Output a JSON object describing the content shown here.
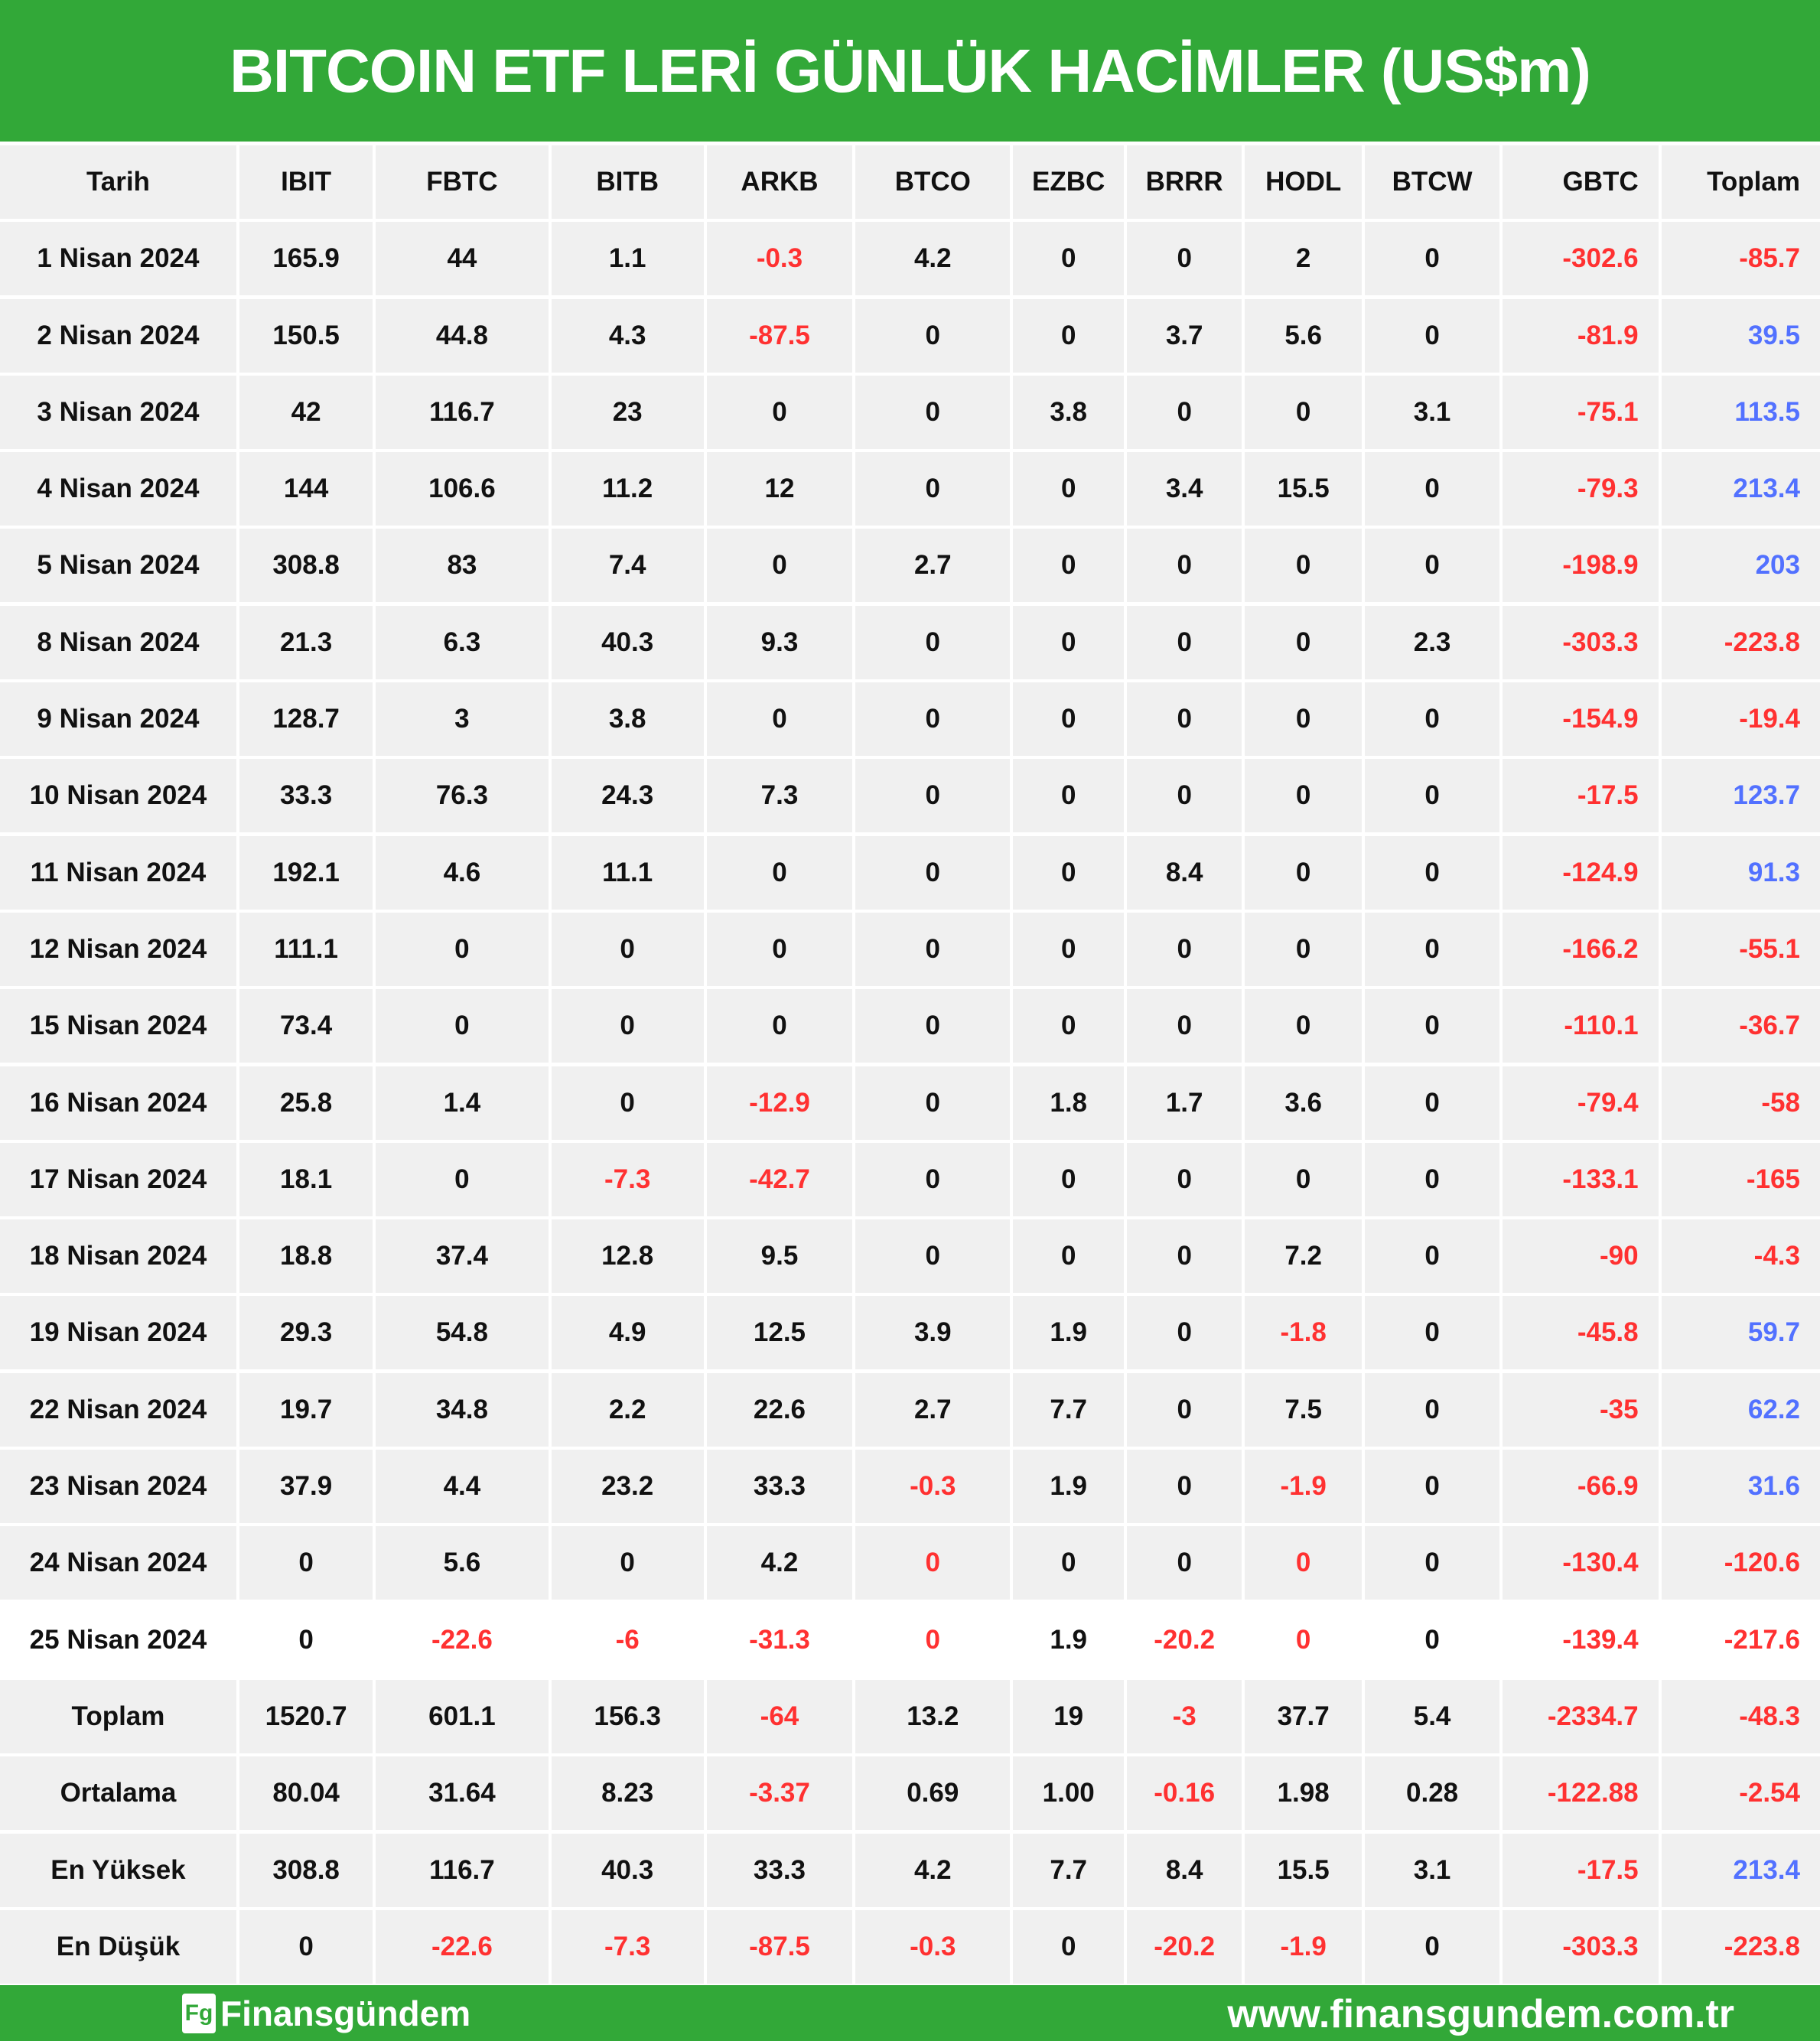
{
  "title": "BITCOIN ETF LERİ GÜNLÜK HACİMLER (US$m)",
  "colors": {
    "brand_green": "#32a838",
    "negative_red": "#ff3131",
    "positive_blue": "#5271ff",
    "row_bg": "#f0f0f0"
  },
  "table": {
    "columns": [
      "Tarih",
      "IBIT",
      "FBTC",
      "BITB",
      "ARKB",
      "BTCO",
      "EZBC",
      "BRRR",
      "HODL",
      "BTCW",
      "GBTC",
      "Toplam"
    ],
    "rows": [
      [
        [
          "1 Nisan 2024",
          ""
        ],
        [
          "165.9",
          ""
        ],
        [
          "44",
          ""
        ],
        [
          "1.1",
          ""
        ],
        [
          "-0.3",
          "r"
        ],
        [
          "4.2",
          ""
        ],
        [
          "0",
          ""
        ],
        [
          "0",
          ""
        ],
        [
          "2",
          ""
        ],
        [
          "0",
          ""
        ],
        [
          "-302.6",
          "r"
        ],
        [
          "-85.7",
          "r"
        ]
      ],
      [
        [
          "2 Nisan 2024",
          ""
        ],
        [
          "150.5",
          ""
        ],
        [
          "44.8",
          ""
        ],
        [
          "4.3",
          ""
        ],
        [
          "-87.5",
          "r"
        ],
        [
          "0",
          ""
        ],
        [
          "0",
          ""
        ],
        [
          "3.7",
          ""
        ],
        [
          "5.6",
          ""
        ],
        [
          "0",
          ""
        ],
        [
          "-81.9",
          "r"
        ],
        [
          "39.5",
          "b"
        ]
      ],
      [
        [
          "3 Nisan 2024",
          ""
        ],
        [
          "42",
          ""
        ],
        [
          "116.7",
          ""
        ],
        [
          "23",
          ""
        ],
        [
          "0",
          ""
        ],
        [
          "0",
          ""
        ],
        [
          "3.8",
          ""
        ],
        [
          "0",
          ""
        ],
        [
          "0",
          ""
        ],
        [
          "3.1",
          ""
        ],
        [
          "-75.1",
          "r"
        ],
        [
          "113.5",
          "b"
        ]
      ],
      [
        [
          "4 Nisan 2024",
          ""
        ],
        [
          "144",
          ""
        ],
        [
          "106.6",
          ""
        ],
        [
          "11.2",
          ""
        ],
        [
          "12",
          ""
        ],
        [
          "0",
          ""
        ],
        [
          "0",
          ""
        ],
        [
          "3.4",
          ""
        ],
        [
          "15.5",
          ""
        ],
        [
          "0",
          ""
        ],
        [
          "-79.3",
          "r"
        ],
        [
          "213.4",
          "b"
        ]
      ],
      [
        [
          "5 Nisan 2024",
          ""
        ],
        [
          "308.8",
          ""
        ],
        [
          "83",
          ""
        ],
        [
          "7.4",
          ""
        ],
        [
          "0",
          ""
        ],
        [
          "2.7",
          ""
        ],
        [
          "0",
          ""
        ],
        [
          "0",
          ""
        ],
        [
          "0",
          ""
        ],
        [
          "0",
          ""
        ],
        [
          "-198.9",
          "r"
        ],
        [
          "203",
          "b"
        ]
      ],
      [
        [
          "8 Nisan 2024",
          ""
        ],
        [
          "21.3",
          ""
        ],
        [
          "6.3",
          ""
        ],
        [
          "40.3",
          ""
        ],
        [
          "9.3",
          ""
        ],
        [
          "0",
          ""
        ],
        [
          "0",
          ""
        ],
        [
          "0",
          ""
        ],
        [
          "0",
          ""
        ],
        [
          "2.3",
          ""
        ],
        [
          "-303.3",
          "r"
        ],
        [
          "-223.8",
          "r"
        ]
      ],
      [
        [
          "9 Nisan 2024",
          ""
        ],
        [
          "128.7",
          ""
        ],
        [
          "3",
          ""
        ],
        [
          "3.8",
          ""
        ],
        [
          "0",
          ""
        ],
        [
          "0",
          ""
        ],
        [
          "0",
          ""
        ],
        [
          "0",
          ""
        ],
        [
          "0",
          ""
        ],
        [
          "0",
          ""
        ],
        [
          "-154.9",
          "r"
        ],
        [
          "-19.4",
          "r"
        ]
      ],
      [
        [
          "10 Nisan 2024",
          ""
        ],
        [
          "33.3",
          ""
        ],
        [
          "76.3",
          ""
        ],
        [
          "24.3",
          ""
        ],
        [
          "7.3",
          ""
        ],
        [
          "0",
          ""
        ],
        [
          "0",
          ""
        ],
        [
          "0",
          ""
        ],
        [
          "0",
          ""
        ],
        [
          "0",
          ""
        ],
        [
          "-17.5",
          "r"
        ],
        [
          "123.7",
          "b"
        ]
      ],
      [
        [
          "11 Nisan 2024",
          ""
        ],
        [
          "192.1",
          ""
        ],
        [
          "4.6",
          ""
        ],
        [
          "11.1",
          ""
        ],
        [
          "0",
          ""
        ],
        [
          "0",
          ""
        ],
        [
          "0",
          ""
        ],
        [
          "8.4",
          ""
        ],
        [
          "0",
          ""
        ],
        [
          "0",
          ""
        ],
        [
          "-124.9",
          "r"
        ],
        [
          "91.3",
          "b"
        ]
      ],
      [
        [
          "12 Nisan 2024",
          ""
        ],
        [
          "111.1",
          ""
        ],
        [
          "0",
          ""
        ],
        [
          "0",
          ""
        ],
        [
          "0",
          ""
        ],
        [
          "0",
          ""
        ],
        [
          "0",
          ""
        ],
        [
          "0",
          ""
        ],
        [
          "0",
          ""
        ],
        [
          "0",
          ""
        ],
        [
          "-166.2",
          "r"
        ],
        [
          "-55.1",
          "r"
        ]
      ],
      [
        [
          "15 Nisan 2024",
          ""
        ],
        [
          "73.4",
          ""
        ],
        [
          "0",
          ""
        ],
        [
          "0",
          ""
        ],
        [
          "0",
          ""
        ],
        [
          "0",
          ""
        ],
        [
          "0",
          ""
        ],
        [
          "0",
          ""
        ],
        [
          "0",
          ""
        ],
        [
          "0",
          ""
        ],
        [
          "-110.1",
          "r"
        ],
        [
          "-36.7",
          "r"
        ]
      ],
      [
        [
          "16 Nisan 2024",
          ""
        ],
        [
          "25.8",
          ""
        ],
        [
          "1.4",
          ""
        ],
        [
          "0",
          ""
        ],
        [
          "-12.9",
          "r"
        ],
        [
          "0",
          ""
        ],
        [
          "1.8",
          ""
        ],
        [
          "1.7",
          ""
        ],
        [
          "3.6",
          ""
        ],
        [
          "0",
          ""
        ],
        [
          "-79.4",
          "r"
        ],
        [
          "-58",
          "r"
        ]
      ],
      [
        [
          "17 Nisan 2024",
          ""
        ],
        [
          "18.1",
          ""
        ],
        [
          "0",
          ""
        ],
        [
          "-7.3",
          "r"
        ],
        [
          "-42.7",
          "r"
        ],
        [
          "0",
          ""
        ],
        [
          "0",
          ""
        ],
        [
          "0",
          ""
        ],
        [
          "0",
          ""
        ],
        [
          "0",
          ""
        ],
        [
          "-133.1",
          "r"
        ],
        [
          "-165",
          "r"
        ]
      ],
      [
        [
          "18 Nisan 2024",
          ""
        ],
        [
          "18.8",
          ""
        ],
        [
          "37.4",
          ""
        ],
        [
          "12.8",
          ""
        ],
        [
          "9.5",
          ""
        ],
        [
          "0",
          ""
        ],
        [
          "0",
          ""
        ],
        [
          "0",
          ""
        ],
        [
          "7.2",
          ""
        ],
        [
          "0",
          ""
        ],
        [
          "-90",
          "r"
        ],
        [
          "-4.3",
          "r"
        ]
      ],
      [
        [
          "19 Nisan 2024",
          ""
        ],
        [
          "29.3",
          ""
        ],
        [
          "54.8",
          ""
        ],
        [
          "4.9",
          ""
        ],
        [
          "12.5",
          ""
        ],
        [
          "3.9",
          ""
        ],
        [
          "1.9",
          ""
        ],
        [
          "0",
          ""
        ],
        [
          "-1.8",
          "r"
        ],
        [
          "0",
          ""
        ],
        [
          "-45.8",
          "r"
        ],
        [
          "59.7",
          "b"
        ]
      ],
      [
        [
          "22 Nisan 2024",
          ""
        ],
        [
          "19.7",
          ""
        ],
        [
          "34.8",
          ""
        ],
        [
          "2.2",
          ""
        ],
        [
          "22.6",
          ""
        ],
        [
          "2.7",
          ""
        ],
        [
          "7.7",
          ""
        ],
        [
          "0",
          ""
        ],
        [
          "7.5",
          ""
        ],
        [
          "0",
          ""
        ],
        [
          "-35",
          "r"
        ],
        [
          "62.2",
          "b"
        ]
      ],
      [
        [
          "23 Nisan 2024",
          ""
        ],
        [
          "37.9",
          ""
        ],
        [
          "4.4",
          ""
        ],
        [
          "23.2",
          ""
        ],
        [
          "33.3",
          ""
        ],
        [
          "-0.3",
          "r"
        ],
        [
          "1.9",
          ""
        ],
        [
          "0",
          ""
        ],
        [
          "-1.9",
          "r"
        ],
        [
          "0",
          ""
        ],
        [
          "-66.9",
          "r"
        ],
        [
          "31.6",
          "b"
        ]
      ],
      [
        [
          "24 Nisan 2024",
          ""
        ],
        [
          "0",
          ""
        ],
        [
          "5.6",
          ""
        ],
        [
          "0",
          ""
        ],
        [
          "4.2",
          ""
        ],
        [
          "0",
          "r"
        ],
        [
          "0",
          ""
        ],
        [
          "0",
          ""
        ],
        [
          "0",
          "r"
        ],
        [
          "0",
          ""
        ],
        [
          "-130.4",
          "r"
        ],
        [
          "-120.6",
          "r"
        ]
      ],
      [
        [
          "25 Nisan 2024",
          ""
        ],
        [
          "0",
          ""
        ],
        [
          "-22.6",
          "r"
        ],
        [
          "-6",
          "r"
        ],
        [
          "-31.3",
          "r"
        ],
        [
          "0",
          "r"
        ],
        [
          "1.9",
          ""
        ],
        [
          "-20.2",
          "r"
        ],
        [
          "0",
          "r"
        ],
        [
          "0",
          ""
        ],
        [
          "-139.4",
          "r"
        ],
        [
          "-217.6",
          "r"
        ]
      ]
    ],
    "summary": [
      [
        [
          "Toplam",
          ""
        ],
        [
          "1520.7",
          ""
        ],
        [
          "601.1",
          ""
        ],
        [
          "156.3",
          ""
        ],
        [
          "-64",
          "r"
        ],
        [
          "13.2",
          ""
        ],
        [
          "19",
          ""
        ],
        [
          "-3",
          "r"
        ],
        [
          "37.7",
          ""
        ],
        [
          "5.4",
          ""
        ],
        [
          "-2334.7",
          "r"
        ],
        [
          "-48.3",
          "r"
        ]
      ],
      [
        [
          "Ortalama",
          ""
        ],
        [
          "80.04",
          ""
        ],
        [
          "31.64",
          ""
        ],
        [
          "8.23",
          ""
        ],
        [
          "-3.37",
          "r"
        ],
        [
          "0.69",
          ""
        ],
        [
          "1.00",
          ""
        ],
        [
          "-0.16",
          "r"
        ],
        [
          "1.98",
          ""
        ],
        [
          "0.28",
          ""
        ],
        [
          "-122.88",
          "r"
        ],
        [
          "-2.54",
          "r"
        ]
      ],
      [
        [
          "En Yüksek",
          ""
        ],
        [
          "308.8",
          ""
        ],
        [
          "116.7",
          ""
        ],
        [
          "40.3",
          ""
        ],
        [
          "33.3",
          ""
        ],
        [
          "4.2",
          ""
        ],
        [
          "7.7",
          ""
        ],
        [
          "8.4",
          ""
        ],
        [
          "15.5",
          ""
        ],
        [
          "3.1",
          ""
        ],
        [
          "-17.5",
          "r"
        ],
        [
          "213.4",
          "b"
        ]
      ],
      [
        [
          "En Düşük",
          ""
        ],
        [
          "0",
          ""
        ],
        [
          "-22.6",
          "r"
        ],
        [
          "-7.3",
          "r"
        ],
        [
          "-87.5",
          "r"
        ],
        [
          "-0.3",
          "r"
        ],
        [
          "0",
          ""
        ],
        [
          "-20.2",
          "r"
        ],
        [
          "-1.9",
          "r"
        ],
        [
          "0",
          ""
        ],
        [
          "-303.3",
          "r"
        ],
        [
          "-223.8",
          "r"
        ]
      ]
    ]
  },
  "footer": {
    "logo_mark": "Fg",
    "logo_text": "Finansgündem",
    "website": "www.finansgundem.com.tr"
  }
}
